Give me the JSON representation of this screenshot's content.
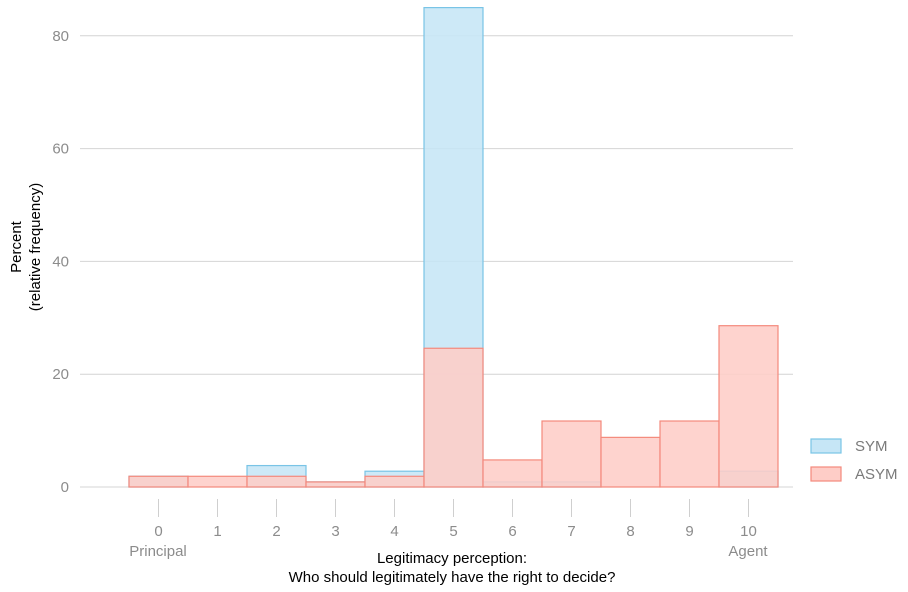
{
  "chart_data": {
    "type": "bar",
    "categories": [
      "0",
      "1",
      "2",
      "3",
      "4",
      "5",
      "6",
      "7",
      "8",
      "9",
      "10"
    ],
    "x_endpoint_labels": {
      "left": "Principal",
      "right": "Agent"
    },
    "xlabel_lines": [
      "Legitimacy perception:",
      "Who should legitimately have the right to decide?"
    ],
    "ylabel_lines": [
      "Percent",
      "(relative frequency)"
    ],
    "yticks": [
      0,
      20,
      40,
      60,
      80
    ],
    "ylim": [
      0,
      85
    ],
    "grid": true,
    "legend_position": "right",
    "series": [
      {
        "name": "SYM",
        "fill": "#c6e6f6",
        "stroke": "#79c4e6",
        "values": [
          1.9,
          0,
          3.8,
          0.9,
          2.8,
          85,
          0.9,
          0.9,
          0,
          0,
          2.8
        ]
      },
      {
        "name": "ASYM",
        "fill": "#fecdc7",
        "stroke": "#f4897c",
        "values": [
          1.9,
          1.9,
          1.9,
          0.9,
          1.9,
          24.6,
          4.8,
          11.7,
          8.8,
          11.7,
          28.6
        ]
      }
    ]
  }
}
